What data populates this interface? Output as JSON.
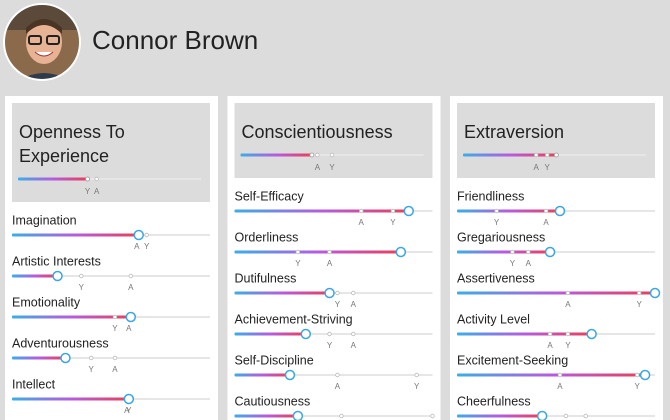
{
  "profile": {
    "name": "Connor Brown"
  },
  "marker_labels": {
    "average": "A",
    "you": "Y"
  },
  "scale": [
    0,
    100
  ],
  "traits": [
    {
      "name": "Openness To Experience",
      "value": 38,
      "average": 43,
      "you": 38,
      "facets": [
        {
          "name": "Imagination",
          "value": 64,
          "average": 63,
          "you": 68
        },
        {
          "name": "Artistic Interests",
          "value": 23,
          "average": 60,
          "you": 35
        },
        {
          "name": "Emotionality",
          "value": 60,
          "average": 59,
          "you": 52
        },
        {
          "name": "Adventurousness",
          "value": 27,
          "average": 52,
          "you": 40
        },
        {
          "name": "Intellect",
          "value": 59,
          "average": 58,
          "you": 59
        }
      ]
    },
    {
      "name": "Conscientiousness",
      "value": 39,
      "average": 42,
      "you": 50,
      "facets": [
        {
          "name": "Self-Efficacy",
          "value": 88,
          "average": 64,
          "you": 80
        },
        {
          "name": "Orderliness",
          "value": 84,
          "average": 48,
          "you": 32
        },
        {
          "name": "Dutifulness",
          "value": 48,
          "average": 60,
          "you": 52
        },
        {
          "name": "Achievement-Striving",
          "value": 36,
          "average": 60,
          "you": 48
        },
        {
          "name": "Self-Discipline",
          "value": 28,
          "average": 52,
          "you": 92
        },
        {
          "name": "Cautiousness",
          "value": 32,
          "average": 54,
          "you": 100
        }
      ]
    },
    {
      "name": "Extraversion",
      "value": 51,
      "average": 40,
      "you": 46,
      "facets": [
        {
          "name": "Friendliness",
          "value": 52,
          "average": 45,
          "you": 20
        },
        {
          "name": "Gregariousness",
          "value": 47,
          "average": 36,
          "you": 28
        },
        {
          "name": "Assertiveness",
          "value": 100,
          "average": 56,
          "you": 92
        },
        {
          "name": "Activity Level",
          "value": 68,
          "average": 47,
          "you": 56
        },
        {
          "name": "Excitement-Seeking",
          "value": 95,
          "average": 52,
          "you": 91
        },
        {
          "name": "Cheerfulness",
          "value": 43,
          "average": 55,
          "you": 65
        }
      ]
    }
  ]
}
